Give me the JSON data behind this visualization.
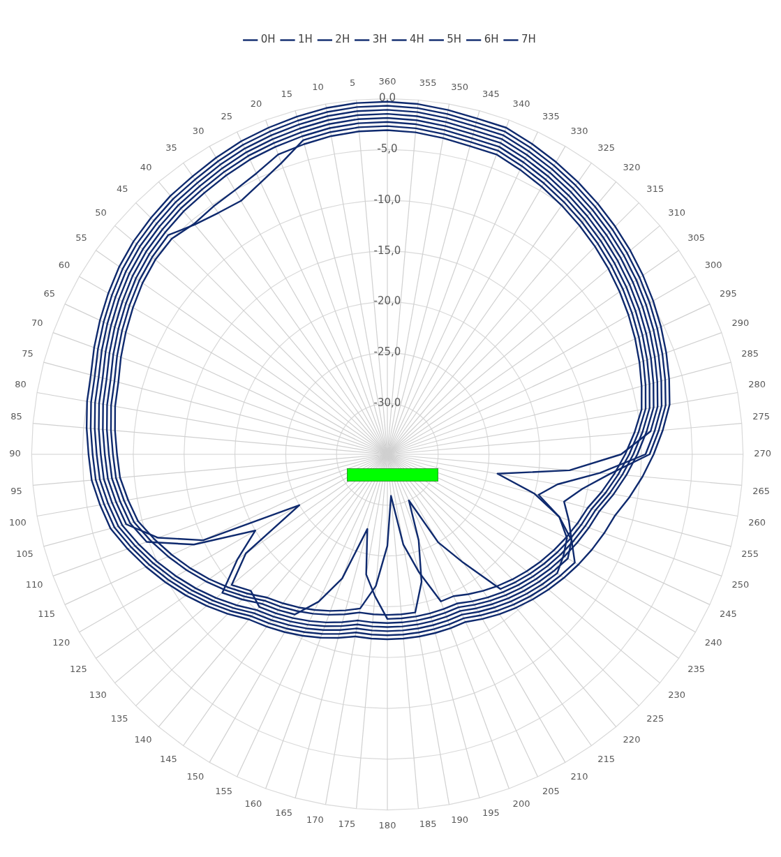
{
  "chart_data": {
    "type": "radar",
    "categories": [
      "360",
      "355",
      "350",
      "345",
      "340",
      "335",
      "330",
      "325",
      "320",
      "315",
      "310",
      "305",
      "300",
      "295",
      "290",
      "285",
      "280",
      "275",
      "270",
      "265",
      "260",
      "255",
      "250",
      "245",
      "240",
      "235",
      "230",
      "225",
      "220",
      "215",
      "210",
      "205",
      "200",
      "195",
      "190",
      "185",
      "180",
      "175",
      "170",
      "165",
      "160",
      "155",
      "150",
      "145",
      "140",
      "135",
      "130",
      "125",
      "120",
      "115",
      "110",
      "105",
      "100",
      "95",
      "90",
      "85",
      "80",
      "75",
      "70",
      "65",
      "60",
      "55",
      "50",
      "45",
      "40",
      "35",
      "30",
      "25",
      "20",
      "15",
      "10",
      "5"
    ],
    "series": [
      {
        "name": "0H",
        "color": "#0f2a6e",
        "values": [
          -0.3,
          -0.4,
          -0.6,
          -0.8,
          -0.8,
          -1.3,
          -1.8,
          -2.3,
          -2.8,
          -3.3,
          -3.8,
          -4.3,
          -4.8,
          -5.3,
          -5.8,
          -6.3,
          -6.8,
          -7.8,
          -8.8,
          -9.8,
          -10.8,
          -11.8,
          -12.3,
          -12.8,
          -13.3,
          -13.8,
          -14.3,
          -14.8,
          -15.3,
          -15.8,
          -16.3,
          -16.8,
          -16.8,
          -16.8,
          -16.8,
          -16.8,
          -16.8,
          -16.8,
          -16.8,
          -16.3,
          -15.8,
          -15.3,
          -14.8,
          -14.3,
          -13.8,
          -12.8,
          -11.8,
          -10.8,
          -9.8,
          -8.8,
          -7.8,
          -6.8,
          -6.3,
          -5.8,
          -5.6,
          -5.3,
          -5,
          -4.8,
          -4.3,
          -3.8,
          -3.3,
          -2.8,
          -2.4,
          -2.1,
          -1.8,
          -1.6,
          -1.3,
          -1,
          -0.8,
          -0.6,
          -0.4,
          -0.3
        ]
      },
      {
        "name": "1H",
        "color": "#0f2a6e",
        "values": [
          -0.7,
          -0.8,
          -1,
          -1.2,
          -1.2,
          -1.7,
          -2.2,
          -2.7,
          -3.2,
          -3.7,
          -4.2,
          -4.7,
          -5.2,
          -5.7,
          -6.2,
          -6.7,
          -7.2,
          -8.2,
          -9.2,
          -13,
          -15.5,
          -17,
          -16,
          -15,
          -13.7,
          -14.2,
          -14.7,
          -15.2,
          -15.7,
          -16.2,
          -16.7,
          -17.2,
          -17.2,
          -17.2,
          -17.2,
          -17.2,
          -17.2,
          -17.2,
          -17.2,
          -16.7,
          -16.2,
          -15.7,
          -15.2,
          -14.7,
          -14.2,
          -13.2,
          -12.2,
          -11.2,
          -10.2,
          -9.2,
          -8.2,
          -7.2,
          -6.7,
          -6.2,
          -6,
          -5.7,
          -5.4,
          -5.2,
          -4.7,
          -4.2,
          -3.7,
          -3.2,
          -2.8,
          -2.5,
          -2.2,
          -2,
          -1.7,
          -1.4,
          -1.2,
          -1,
          -0.8,
          -0.7
        ]
      },
      {
        "name": "2H",
        "color": "#0f2a6e",
        "values": [
          -1.1,
          -1.2,
          -1.4,
          -1.6,
          -1.6,
          -2.1,
          -2.6,
          -3.1,
          -3.6,
          -4.1,
          -4.6,
          -5.1,
          -5.6,
          -6.1,
          -6.6,
          -7.1,
          -7.6,
          -8.6,
          -9.6,
          -14,
          -18,
          -19.6,
          -17,
          -15.5,
          -15,
          -14.6,
          -15.1,
          -15.6,
          -16.1,
          -16.6,
          -17.1,
          -17.6,
          -17.6,
          -17.6,
          -17.6,
          -17.6,
          -17.6,
          -17.6,
          -17.6,
          -17.1,
          -16.6,
          -16.1,
          -15.6,
          -15.1,
          -14.6,
          -13.6,
          -12.6,
          -11.6,
          -10.6,
          -9.6,
          -8.6,
          -7.6,
          -7.1,
          -6.6,
          -6.4,
          -6.1,
          -5.8,
          -5.6,
          -5.1,
          -4.6,
          -4.1,
          -3.6,
          -3.2,
          -2.9,
          -2.6,
          -2.4,
          -2.1,
          -1.8,
          -1.6,
          -1.4,
          -1.2,
          -1.1
        ]
      },
      {
        "name": "3H",
        "color": "#0f2a6e",
        "values": [
          -1.5,
          -1.6,
          -1.8,
          -2,
          -2,
          -2.5,
          -3,
          -3.5,
          -4,
          -4.5,
          -5,
          -5.5,
          -6,
          -6.5,
          -7,
          -7.5,
          -8,
          -9,
          -12,
          -17,
          -24,
          -20,
          -17,
          -15,
          -14.5,
          -15,
          -15.5,
          -16,
          -16.5,
          -17,
          -17.5,
          -18,
          -18,
          -18,
          -18,
          -18,
          -18,
          -18,
          -18,
          -17.5,
          -17,
          -16.5,
          -16,
          -15.5,
          -15,
          -14,
          -13,
          -12,
          -11,
          -10,
          -9,
          -8,
          -7.5,
          -7,
          -6.8,
          -6.5,
          -6.2,
          -6,
          -5.5,
          -5,
          -4.5,
          -4,
          -3.6,
          -3.3,
          -3,
          -2.8,
          -2.5,
          -2.2,
          -2,
          -1.8,
          -1.6,
          -1.5
        ]
      },
      {
        "name": "4H",
        "color": "#0f2a6e",
        "values": [
          -1.9,
          -2,
          -2.2,
          -2.4,
          -2.4,
          -2.9,
          -3.4,
          -3.9,
          -4.4,
          -4.9,
          -5.4,
          -5.9,
          -6.4,
          -6.9,
          -7.4,
          -7.9,
          -8.4,
          -9.4,
          -10.4,
          -11.4,
          -12.4,
          -13.4,
          -13.9,
          -14.4,
          -14.9,
          -15.4,
          -15.9,
          -16.4,
          -16.9,
          -17.4,
          -17.9,
          -18.4,
          -18.4,
          -18.4,
          -18.4,
          -18.4,
          -18.4,
          -18.4,
          -18.4,
          -17.9,
          -17.4,
          -16.9,
          -16.4,
          -15.9,
          -15.4,
          -16,
          -15,
          -18,
          -25,
          -15,
          -11,
          -8.4,
          -7.9,
          -7.4,
          -7.2,
          -6.9,
          -6.6,
          -6.4,
          -5.9,
          -5.4,
          -4.9,
          -4.4,
          -4,
          -3.7,
          -3.4,
          -3.2,
          -2.9,
          -2.6,
          -2.4,
          -2.2,
          -2,
          -1.9
        ]
      },
      {
        "name": "5H",
        "color": "#0f2a6e",
        "values": [
          -2.3,
          -2.4,
          -2.6,
          -2.8,
          -2.8,
          -3.3,
          -3.8,
          -4.3,
          -4.8,
          -5.3,
          -5.8,
          -6.3,
          -6.8,
          -7.3,
          -7.8,
          -8.3,
          -8.8,
          -9.8,
          -10.8,
          -11.8,
          -12.8,
          -13.8,
          -14.3,
          -14.8,
          -15.3,
          -15.8,
          -16.3,
          -16.8,
          -17.3,
          -17.8,
          -18.3,
          -18.8,
          -18.8,
          -18.8,
          -18.8,
          -18.8,
          -18.8,
          -21,
          -23,
          -27.4,
          -22,
          -19,
          -16.8,
          -16.3,
          -15.8,
          -14.8,
          -13.8,
          -17,
          -20,
          -14,
          -9.8,
          -8.8,
          -8.3,
          -7.8,
          -7.6,
          -7.3,
          -7,
          -6.8,
          -6.3,
          -5.8,
          -5.3,
          -4.8,
          -4.4,
          -4.1,
          -3.8,
          -3.6,
          -3.3,
          -3,
          -2.8,
          -2.6,
          -2.4,
          -2.3
        ]
      },
      {
        "name": "6H",
        "color": "#0f2a6e",
        "values": [
          -2.7,
          -2.8,
          -3,
          -3.2,
          -3.2,
          -3.7,
          -4.2,
          -4.7,
          -5.2,
          -5.7,
          -6.2,
          -6.7,
          -7.2,
          -7.7,
          -8.2,
          -8.7,
          -9.2,
          -10.2,
          -11.2,
          -12.2,
          -13.2,
          -14.2,
          -14.7,
          -15.2,
          -15.7,
          -16.2,
          -16.7,
          -17.2,
          -17.7,
          -22,
          -25,
          -30,
          -26,
          -22,
          -19.2,
          -19.2,
          -19.2,
          -19.2,
          -19.2,
          -18.7,
          -18.2,
          -17.7,
          -17.2,
          -16.7,
          -16.2,
          -15.2,
          -14.2,
          -13.2,
          -12.2,
          -11.2,
          -10.2,
          -9.2,
          -8.7,
          -8.2,
          -8,
          -7.7,
          -7.4,
          -7.2,
          -6.7,
          -6.2,
          -5.7,
          -5.2,
          -4.8,
          -4.5,
          -5.5,
          -6,
          -6.2,
          -5.5,
          -4.5,
          -3,
          -2.8,
          -2.7
        ]
      },
      {
        "name": "7H",
        "color": "#0f2a6e",
        "values": [
          -3.1,
          -3.2,
          -3.4,
          -3.6,
          -3.6,
          -4.1,
          -4.6,
          -5.1,
          -5.6,
          -6.1,
          -6.6,
          -7.1,
          -7.6,
          -8.1,
          -8.6,
          -9.1,
          -9.6,
          -10.6,
          -11.6,
          -12.6,
          -13.6,
          -14.6,
          -15.1,
          -15.6,
          -16.1,
          -16.6,
          -17.1,
          -17.6,
          -18.1,
          -18.6,
          -19.1,
          -19.6,
          -19.6,
          -23,
          -26,
          -30.9,
          -26,
          -22,
          -19.6,
          -19.1,
          -18.6,
          -18.1,
          -17.6,
          -17.1,
          -16.6,
          -15.6,
          -14.6,
          -13.6,
          -12.6,
          -11.6,
          -10.6,
          -9.6,
          -9.1,
          -8.6,
          -8.4,
          -8.1,
          -7.8,
          -7.6,
          -7.1,
          -6.6,
          -6.1,
          -5.6,
          -5.2,
          -5,
          -5.4,
          -5.2,
          -5,
          -4.5,
          -3.6,
          -3.4,
          -3.2,
          -3.1
        ]
      }
    ],
    "ylim": [
      -35,
      0
    ],
    "yticks": [
      {
        "value": -30,
        "label": "-30,0"
      },
      {
        "value": -25,
        "label": "-25,0"
      },
      {
        "value": -20,
        "label": "-20,0"
      },
      {
        "value": -15,
        "label": "-15,0"
      },
      {
        "value": -10,
        "label": "-10,0"
      },
      {
        "value": -5,
        "label": "-5,0"
      },
      {
        "value": 0,
        "label": "0,0"
      }
    ],
    "grid": true,
    "legend": "top",
    "marker": "none",
    "line_style": "solid"
  }
}
